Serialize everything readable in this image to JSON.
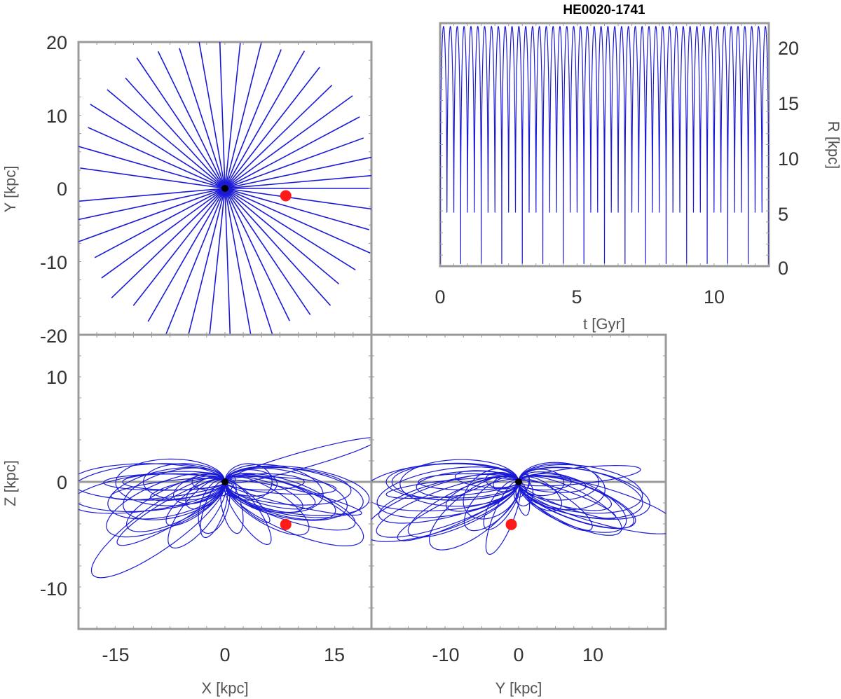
{
  "colors": {
    "orbit": "#1a1ad6",
    "marker": "#ff1a1a",
    "origin": "#000000",
    "frame": "#9a9a9a",
    "zero_line": "#9a9a9a"
  },
  "chart_data": [
    {
      "id": "xy",
      "type": "line",
      "title": "",
      "xlabel": "",
      "ylabel": "Y [kpc]",
      "xlim": [
        -20,
        20
      ],
      "ylim": [
        -20,
        20
      ],
      "yticks": [
        20,
        10,
        0,
        -10,
        -20
      ],
      "xticks": [],
      "orbit_description": "radial orbit spokes through Galactic centre",
      "spoke_angles_deg": [
        -175,
        -168,
        -160,
        -152,
        -144,
        -136,
        -128,
        -120,
        -112,
        -104,
        -96,
        -88,
        -80,
        -72,
        -64,
        -56,
        -48,
        -40,
        -32,
        -24,
        -16,
        -8,
        0,
        5,
        12,
        20,
        28,
        36,
        44,
        52,
        60,
        68,
        76,
        84,
        92,
        100,
        108,
        116,
        124,
        132,
        140,
        148,
        156,
        164,
        172
      ],
      "apocenter_kpc": 21.7,
      "origin": {
        "x": 0,
        "y": 0
      },
      "current_position": {
        "x": 8.3,
        "y": -1.0
      }
    },
    {
      "id": "rt",
      "type": "line",
      "title": "HE0020-1741",
      "xlabel": "t [Gyr]",
      "ylabel": "R [kpc]",
      "xlim": [
        0,
        12
      ],
      "ylim": [
        0,
        22
      ],
      "xticks": [
        0,
        5,
        10
      ],
      "yticks": [
        0,
        5,
        10,
        15,
        20
      ],
      "period_gyr": 0.25,
      "r_max_kpc": 21.7,
      "r_min_kpc": 0.2
    },
    {
      "id": "xz",
      "type": "line",
      "title": "",
      "xlabel": "X [kpc]",
      "ylabel": "Z [kpc]",
      "xlim": [
        -20,
        20
      ],
      "ylim": [
        -14.5,
        14.5
      ],
      "xticks": [
        -15,
        0,
        15
      ],
      "yticks": [
        10,
        0,
        -10
      ],
      "origin": {
        "x": 0,
        "z": 0
      },
      "current_position": {
        "x": 8.3,
        "z": -4.2
      }
    },
    {
      "id": "yz",
      "type": "line",
      "title": "",
      "xlabel": "Y [kpc]",
      "ylabel": "",
      "xlim": [
        -20,
        20
      ],
      "ylim": [
        -14.5,
        14.5
      ],
      "xticks": [
        -10,
        0,
        10
      ],
      "yticks": [],
      "origin": {
        "y": 0,
        "z": 0
      },
      "current_position": {
        "y": -1.0,
        "z": -4.2
      }
    }
  ]
}
